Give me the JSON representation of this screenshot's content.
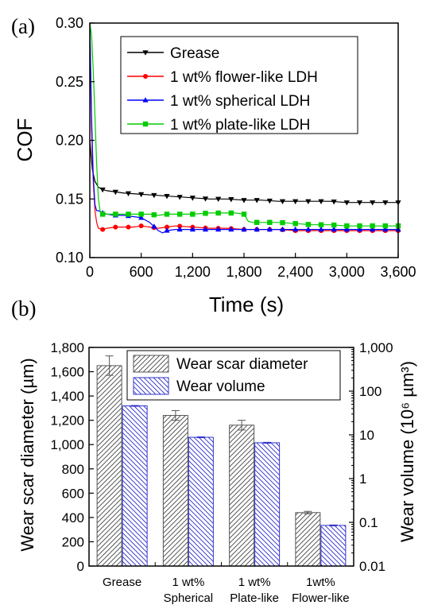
{
  "chart_data": [
    {
      "panel_label": "(a)",
      "type": "line",
      "xlabel": "Time (s)",
      "ylabel": "COF",
      "xlim": [
        0,
        3600
      ],
      "ylim": [
        0.1,
        0.3
      ],
      "x_ticks": [
        "0",
        "600",
        "1,200",
        "1,800",
        "2,400",
        "3,000",
        "3,600"
      ],
      "y_ticks": [
        "0.10",
        "0.15",
        "0.20",
        "0.25",
        "0.30"
      ],
      "legend_position": "top-right",
      "series": [
        {
          "name": "Grease",
          "color": "#000000",
          "marker": "triangle-down",
          "x": [
            0,
            30,
            60,
            100,
            150,
            200,
            300,
            400,
            600,
            800,
            1000,
            1200,
            1400,
            1600,
            1800,
            2000,
            2200,
            2400,
            2600,
            2800,
            3000,
            3200,
            3400,
            3600
          ],
          "y": [
            0.2,
            0.175,
            0.165,
            0.16,
            0.158,
            0.157,
            0.156,
            0.155,
            0.154,
            0.153,
            0.152,
            0.151,
            0.15,
            0.15,
            0.149,
            0.149,
            0.148,
            0.148,
            0.148,
            0.148,
            0.147,
            0.147,
            0.147,
            0.147
          ]
        },
        {
          "name": "1 wt% flower-like LDH",
          "color": "#ff0000",
          "marker": "circle",
          "x": [
            0,
            20,
            40,
            60,
            80,
            100,
            150,
            200,
            300,
            400,
            500,
            600,
            700,
            800,
            900,
            1000,
            1200,
            1400,
            1600,
            1800,
            2000,
            2200,
            2400,
            2600,
            2800,
            3000,
            3200,
            3400,
            3600
          ],
          "y": [
            0.3,
            0.21,
            0.165,
            0.14,
            0.13,
            0.125,
            0.124,
            0.125,
            0.126,
            0.126,
            0.126,
            0.127,
            0.126,
            0.125,
            0.126,
            0.127,
            0.126,
            0.125,
            0.125,
            0.124,
            0.124,
            0.124,
            0.123,
            0.123,
            0.123,
            0.123,
            0.123,
            0.123,
            0.123
          ]
        },
        {
          "name": "1 wt%  spherical LDH",
          "color": "#0000ff",
          "marker": "triangle-up",
          "x": [
            0,
            20,
            40,
            60,
            80,
            100,
            150,
            200,
            300,
            400,
            500,
            600,
            700,
            800,
            850,
            900,
            1000,
            1200,
            1400,
            1600,
            1800,
            2000,
            2200,
            2400,
            2600,
            2800,
            3000,
            3200,
            3400,
            3600
          ],
          "y": [
            0.3,
            0.22,
            0.17,
            0.145,
            0.14,
            0.14,
            0.138,
            0.137,
            0.136,
            0.136,
            0.135,
            0.134,
            0.13,
            0.123,
            0.121,
            0.123,
            0.124,
            0.124,
            0.124,
            0.124,
            0.124,
            0.124,
            0.124,
            0.124,
            0.124,
            0.124,
            0.124,
            0.124,
            0.124,
            0.124
          ]
        },
        {
          "name": "1 wt%  plate-like LDH",
          "color": "#00cc00",
          "marker": "square",
          "x": [
            0,
            20,
            40,
            60,
            80,
            100,
            120,
            150,
            200,
            300,
            400,
            500,
            600,
            700,
            800,
            900,
            1000,
            1200,
            1400,
            1600,
            1700,
            1800,
            1850,
            1900,
            2000,
            2200,
            2400,
            2600,
            2800,
            3000,
            3200,
            3400,
            3600
          ],
          "y": [
            0.3,
            0.29,
            0.26,
            0.22,
            0.18,
            0.15,
            0.14,
            0.137,
            0.137,
            0.137,
            0.137,
            0.137,
            0.137,
            0.137,
            0.136,
            0.137,
            0.137,
            0.137,
            0.138,
            0.138,
            0.138,
            0.137,
            0.131,
            0.13,
            0.13,
            0.13,
            0.129,
            0.128,
            0.128,
            0.127,
            0.127,
            0.127,
            0.127
          ]
        }
      ]
    },
    {
      "panel_label": "(b)",
      "type": "bar",
      "categories": [
        "Grease",
        "1 wt%\nSpherical",
        "1 wt%\nPlate-like",
        "1wt%\nFlower-like"
      ],
      "category_lines": [
        [
          "Grease"
        ],
        [
          "1 wt%",
          "Spherical"
        ],
        [
          "1 wt%",
          "Plate-like"
        ],
        [
          "1wt%",
          "Flower-like"
        ]
      ],
      "ylabel": "Wear scar diameter (µm)",
      "ylabel_right": "Wear volume (10⁶ µm³)",
      "ylim": [
        0,
        1800
      ],
      "y_ticks": [
        "0",
        "200",
        "400",
        "600",
        "800",
        "1,000",
        "1,200",
        "1,400",
        "1,600",
        "1,800"
      ],
      "ylim_right": [
        0.01,
        1000
      ],
      "y_scale_right": "log",
      "y_ticks_right": [
        "0.01",
        "0.1",
        "1",
        "10",
        "100",
        "1,000"
      ],
      "legend_position": "top-right",
      "series": [
        {
          "name": "Wear scar diameter",
          "axis": "left",
          "color": "#555555",
          "hatch": "diagonal-up",
          "values": [
            1650,
            1240,
            1160,
            440
          ],
          "errors": [
            80,
            40,
            40,
            10
          ]
        },
        {
          "name": "Wear volume",
          "axis": "right",
          "color": "#3333cc",
          "hatch": "diagonal-down",
          "values": [
            46,
            8.8,
            6.6,
            0.085
          ],
          "errors": [
            1,
            0.2,
            0.15,
            0.002
          ]
        }
      ]
    }
  ]
}
